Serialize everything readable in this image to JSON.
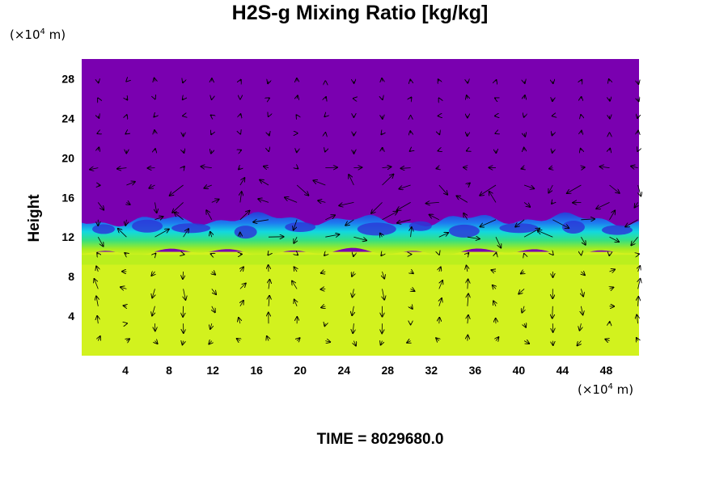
{
  "chart_data": {
    "type": "heatmap",
    "title": "H2S-g Mixing Ratio [kg/kg]",
    "ylabel": "Height",
    "x_unit": {
      "prefix": "(×10",
      "exp": "4",
      "suffix": " m)"
    },
    "y_unit": {
      "prefix": "(×10",
      "exp": "4",
      "suffix": " m)"
    },
    "xlim": [
      0,
      51
    ],
    "ylim": [
      0,
      30
    ],
    "x_ticks": [
      "4",
      "8",
      "12",
      "16",
      "20",
      "24",
      "28",
      "32",
      "36",
      "40",
      "44",
      "48"
    ],
    "y_ticks": [
      "4",
      "8",
      "12",
      "16",
      "20",
      "24",
      "28"
    ],
    "x_tick_values": [
      4,
      8,
      12,
      16,
      20,
      24,
      28,
      32,
      36,
      40,
      44,
      48
    ],
    "y_tick_values": [
      4,
      8,
      12,
      16,
      20,
      24,
      28
    ],
    "colors": {
      "upper": "#7a00b0",
      "band_dark": "#2a3ad8",
      "band_blue": "#1e7af0",
      "band_cyan": "#12d8e0",
      "band_green": "#36e080",
      "band_lime": "#a8ec1e",
      "lower": "#d2f21e",
      "arrows": "#000000"
    },
    "fields": [
      {
        "name": "H2S-g mixing ratio",
        "upper_region_y_above": 13.5,
        "transition_band_y": [
          10.5,
          13.5
        ],
        "lower_region_y_below": 10.5
      }
    ],
    "overlay": "velocity vectors (quiver)",
    "time_label": "TIME = 8029680.0"
  }
}
